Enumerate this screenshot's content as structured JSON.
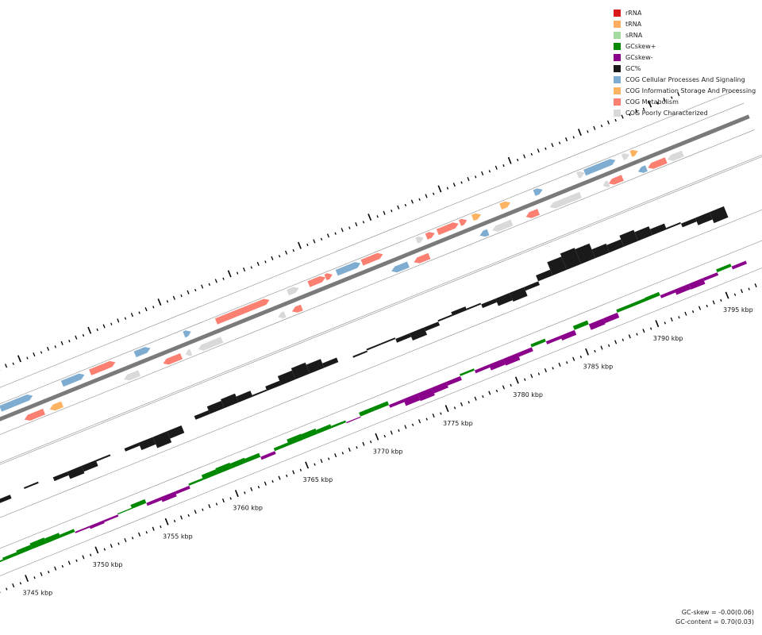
{
  "legend": {
    "items": [
      {
        "label": "rRNA",
        "color": "#d7191c",
        "icon": "red-square"
      },
      {
        "label": "tRNA",
        "color": "#fdae61",
        "icon": "orange-square"
      },
      {
        "label": "sRNA",
        "color": "#a6dba0",
        "icon": "light-green-square"
      },
      {
        "label": "GCskew+",
        "color": "#008800",
        "icon": "green-square"
      },
      {
        "label": "GCskew-",
        "color": "#8b008b",
        "icon": "purple-square"
      },
      {
        "label": "GC%",
        "color": "#1a1a1a",
        "icon": "black-square"
      },
      {
        "label": "COG Cellular Processes And Signaling",
        "color": "#7fadd1",
        "icon": "blue-square"
      },
      {
        "label": "COG Information Storage And Processing",
        "color": "#fdb462",
        "icon": "orange-square"
      },
      {
        "label": "COG Metabolism",
        "color": "#fb8072",
        "icon": "salmon-square"
      },
      {
        "label": "COG Poorly Characterized",
        "color": "#d9d9d9",
        "icon": "grey-square"
      }
    ]
  },
  "stats": {
    "gc_skew": "GC-skew = -0.00(0.06)",
    "gc_content": "GC-content = 0.70(0.03)"
  },
  "chart_data": {
    "type": "circular-genome-map-segment",
    "range_kbp": [
      3743,
      3797
    ],
    "tick_labels": [
      "3745 kbp",
      "3750 kbp",
      "3755 kbp",
      "3760 kbp",
      "3765 kbp",
      "3770 kbp",
      "3775 kbp",
      "3780 kbp",
      "3785 kbp",
      "3790 kbp",
      "3795 kbp"
    ],
    "tick_values_kbp": [
      3745,
      3750,
      3755,
      3760,
      3765,
      3770,
      3775,
      3780,
      3785,
      3790,
      3795
    ],
    "features": [
      {
        "start": 3743.2,
        "end": 3744.0,
        "strand": -1,
        "cat": "tRNA"
      },
      {
        "start": 3744.3,
        "end": 3745.4,
        "strand": -1,
        "cat": "poor"
      },
      {
        "start": 3745.8,
        "end": 3746.6,
        "strand": 1,
        "cat": "cell"
      },
      {
        "start": 3744.8,
        "end": 3745.8,
        "strand": 1,
        "cat": "poor"
      },
      {
        "start": 3746.0,
        "end": 3747.3,
        "strand": 1,
        "cat": "poor"
      },
      {
        "start": 3747.6,
        "end": 3749.9,
        "strand": 1,
        "cat": "cell"
      },
      {
        "start": 3748.8,
        "end": 3750.2,
        "strand": -1,
        "cat": "met"
      },
      {
        "start": 3750.6,
        "end": 3751.5,
        "strand": -1,
        "cat": "info"
      },
      {
        "start": 3752.0,
        "end": 3753.6,
        "strand": 1,
        "cat": "cell"
      },
      {
        "start": 3754.0,
        "end": 3755.8,
        "strand": 1,
        "cat": "met"
      },
      {
        "start": 3755.9,
        "end": 3757.0,
        "strand": -1,
        "cat": "poor"
      },
      {
        "start": 3757.2,
        "end": 3758.3,
        "strand": 1,
        "cat": "cell"
      },
      {
        "start": 3758.7,
        "end": 3760.0,
        "strand": -1,
        "cat": "met"
      },
      {
        "start": 3760.3,
        "end": 3760.7,
        "strand": -1,
        "cat": "poor"
      },
      {
        "start": 3760.7,
        "end": 3761.2,
        "strand": 1,
        "cat": "cell"
      },
      {
        "start": 3761.2,
        "end": 3762.9,
        "strand": -1,
        "cat": "poor"
      },
      {
        "start": 3763.0,
        "end": 3766.8,
        "strand": 1,
        "cat": "met"
      },
      {
        "start": 3766.9,
        "end": 3767.4,
        "strand": -1,
        "cat": "poor"
      },
      {
        "start": 3768.1,
        "end": 3768.9,
        "strand": 1,
        "cat": "poor"
      },
      {
        "start": 3767.9,
        "end": 3768.6,
        "strand": -1,
        "cat": "met"
      },
      {
        "start": 3769.6,
        "end": 3770.8,
        "strand": 1,
        "cat": "met"
      },
      {
        "start": 3770.8,
        "end": 3771.3,
        "strand": 1,
        "cat": "met"
      },
      {
        "start": 3771.6,
        "end": 3773.3,
        "strand": 1,
        "cat": "cell"
      },
      {
        "start": 3773.4,
        "end": 3774.9,
        "strand": 1,
        "cat": "met"
      },
      {
        "start": 3775.0,
        "end": 3776.2,
        "strand": -1,
        "cat": "cell"
      },
      {
        "start": 3776.6,
        "end": 3777.7,
        "strand": -1,
        "cat": "met"
      },
      {
        "start": 3777.3,
        "end": 3777.8,
        "strand": 1,
        "cat": "poor"
      },
      {
        "start": 3778.0,
        "end": 3778.6,
        "strand": 1,
        "cat": "met"
      },
      {
        "start": 3778.8,
        "end": 3780.3,
        "strand": 1,
        "cat": "met"
      },
      {
        "start": 3780.4,
        "end": 3780.9,
        "strand": 1,
        "cat": "met"
      },
      {
        "start": 3781.3,
        "end": 3781.9,
        "strand": 1,
        "cat": "info"
      },
      {
        "start": 3781.3,
        "end": 3781.9,
        "strand": -1,
        "cat": "cell"
      },
      {
        "start": 3782.2,
        "end": 3783.6,
        "strand": -1,
        "cat": "poor"
      },
      {
        "start": 3783.3,
        "end": 3784.0,
        "strand": 1,
        "cat": "info"
      },
      {
        "start": 3784.6,
        "end": 3785.5,
        "strand": -1,
        "cat": "met"
      },
      {
        "start": 3785.7,
        "end": 3786.3,
        "strand": 1,
        "cat": "cell"
      },
      {
        "start": 3786.3,
        "end": 3788.5,
        "strand": -1,
        "cat": "poor"
      },
      {
        "start": 3788.8,
        "end": 3789.3,
        "strand": 1,
        "cat": "poor"
      },
      {
        "start": 3789.3,
        "end": 3791.5,
        "strand": 1,
        "cat": "cell"
      },
      {
        "start": 3790.1,
        "end": 3790.5,
        "strand": -1,
        "cat": "poor"
      },
      {
        "start": 3790.5,
        "end": 3791.5,
        "strand": -1,
        "cat": "met"
      },
      {
        "start": 3792.0,
        "end": 3792.5,
        "strand": 1,
        "cat": "poor"
      },
      {
        "start": 3792.6,
        "end": 3793.1,
        "strand": 1,
        "cat": "info"
      },
      {
        "start": 3792.6,
        "end": 3793.2,
        "strand": -1,
        "cat": "cell"
      },
      {
        "start": 3793.3,
        "end": 3794.6,
        "strand": -1,
        "cat": "met"
      },
      {
        "start": 3794.7,
        "end": 3795.8,
        "strand": -1,
        "cat": "poor"
      }
    ],
    "gc_content_profile": [
      0.43,
      0.5,
      0.55,
      0.6,
      0.62,
      0.6,
      0.55,
      0.5,
      0.52,
      0.58,
      0.6,
      0.56,
      0.5,
      0.45,
      0.5,
      0.6,
      0.65,
      0.7,
      0.72,
      0.68,
      0.62,
      0.66,
      0.72,
      0.75,
      0.72,
      0.66,
      0.6,
      0.58,
      0.62,
      0.62,
      0.55,
      0.5,
      0.55,
      0.62,
      0.65,
      0.62,
      0.55,
      0.5,
      0.48,
      0.55,
      0.68,
      0.78,
      0.82,
      0.8,
      0.72,
      0.7,
      0.75,
      0.72,
      0.68,
      0.62,
      0.55,
      0.5,
      0.45,
      0.5
    ],
    "gc_skew_profile": [
      0.15,
      0.3,
      0.45,
      0.6,
      0.5,
      0.3,
      -0.15,
      -0.3,
      -0.2,
      0.1,
      0.4,
      -0.3,
      -0.5,
      -0.3,
      0.2,
      0.5,
      0.6,
      0.5,
      0.4,
      -0.3,
      0.3,
      0.6,
      0.55,
      0.4,
      0.2,
      -0.1,
      0.4,
      0.4,
      -0.3,
      -0.7,
      -0.8,
      -0.6,
      -0.4,
      0.2,
      -0.3,
      -0.6,
      -0.7,
      -0.4,
      0.3,
      -0.3,
      -0.5,
      0.4,
      -0.6,
      -0.5,
      0.3,
      0.3,
      0.35,
      -0.3,
      -0.55,
      -0.6,
      -0.3,
      0.3,
      -0.3,
      0.3
    ]
  }
}
